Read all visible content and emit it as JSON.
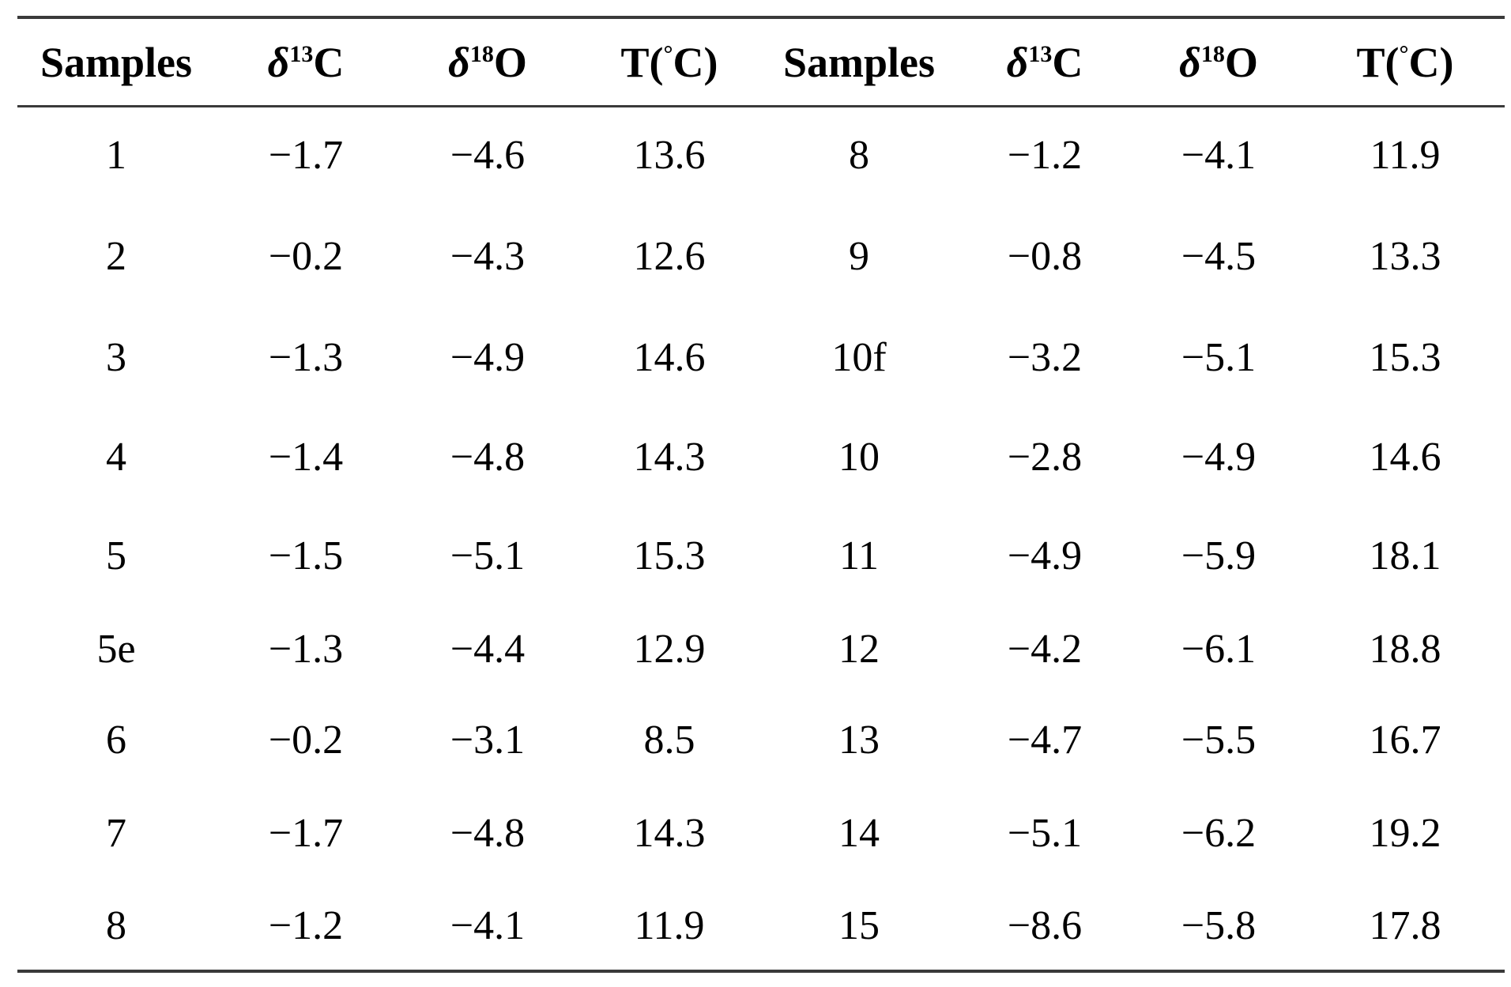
{
  "table": {
    "headers": [
      {
        "prefix": "Samples"
      },
      {
        "symbol": "δ",
        "isotope": "13",
        "element": "C"
      },
      {
        "symbol": "δ",
        "isotope": "18",
        "element": "O"
      },
      {
        "prefix": "T(",
        "degree": "°",
        "unit": "C)"
      },
      {
        "prefix": "Samples"
      },
      {
        "symbol": "δ",
        "isotope": "13",
        "element": "C"
      },
      {
        "symbol": "δ",
        "isotope": "18",
        "element": "O"
      },
      {
        "prefix": "T(",
        "degree": "°",
        "unit": "C)"
      }
    ],
    "rows": [
      [
        "1",
        "−1.7",
        "−4.6",
        "13.6",
        "8",
        "−1.2",
        "−4.1",
        "11.9"
      ],
      [
        "2",
        "−0.2",
        "−4.3",
        "12.6",
        "9",
        "−0.8",
        "−4.5",
        "13.3"
      ],
      [
        "3",
        "−1.3",
        "−4.9",
        "14.6",
        "10f",
        "−3.2",
        "−5.1",
        "15.3"
      ],
      [
        "4",
        "−1.4",
        "−4.8",
        "14.3",
        "10",
        "−2.8",
        "−4.9",
        "14.6"
      ],
      [
        "5",
        "−1.5",
        "−5.1",
        "15.3",
        "11",
        "−4.9",
        "−5.9",
        "18.1"
      ],
      [
        "5e",
        "−1.3",
        "−4.4",
        "12.9",
        "12",
        "−4.2",
        "−6.1",
        "18.8"
      ],
      [
        "6",
        "−0.2",
        "−3.1",
        "8.5",
        "13",
        "−4.7",
        "−5.5",
        "16.7"
      ],
      [
        "7",
        "−1.7",
        "−4.8",
        "14.3",
        "14",
        "−5.1",
        "−6.2",
        "19.2"
      ],
      [
        "8",
        "−1.2",
        "−4.1",
        "11.9",
        "15",
        "−8.6",
        "−5.8",
        "17.8"
      ]
    ]
  }
}
